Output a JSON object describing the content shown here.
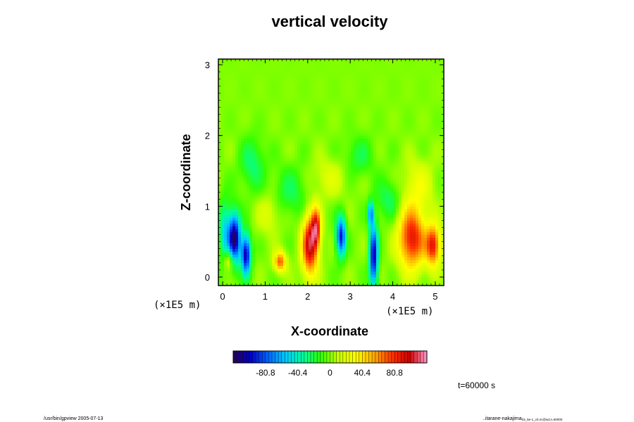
{
  "chart_data": {
    "type": "heatmap",
    "title": "vertical velocity",
    "xlabel": "X-coordinate",
    "ylabel": "Z-coordinate",
    "x_unit_label": "(×1E5 m)",
    "y_unit_label": "(×1E5 m)",
    "xlim": [
      -0.1,
      5.2
    ],
    "ylim": [
      -0.12,
      3.08
    ],
    "x_ticks": [
      "0",
      "1",
      "2",
      "3",
      "4",
      "5"
    ],
    "y_ticks": [
      "0",
      "1",
      "2",
      "3"
    ],
    "x_tick_values": [
      0,
      1,
      2,
      3,
      4,
      5
    ],
    "y_tick_values": [
      0,
      1,
      2,
      3
    ],
    "grid": false,
    "background_value": 0,
    "features": [
      {
        "sign": "negative",
        "x": 0.28,
        "z": 0.55,
        "sx": 0.1,
        "sz": 0.25,
        "amp": -115
      },
      {
        "sign": "negative",
        "x": 0.55,
        "z": 0.32,
        "sx": 0.08,
        "sz": 0.2,
        "amp": -105
      },
      {
        "sign": "negative",
        "x": 0.05,
        "z": 0.65,
        "sx": 0.1,
        "sz": 0.3,
        "amp": -45
      },
      {
        "sign": "positive",
        "x": 0.15,
        "z": 0.25,
        "sx": 0.08,
        "sz": 0.1,
        "amp": 40
      },
      {
        "sign": "positive",
        "x": 1.35,
        "z": 0.22,
        "sx": 0.1,
        "sz": 0.1,
        "amp": 70
      },
      {
        "sign": "positive",
        "x": 2.05,
        "z": 0.45,
        "sx": 0.13,
        "sz": 0.3,
        "amp": 100
      },
      {
        "sign": "positive",
        "x": 2.2,
        "z": 0.7,
        "sx": 0.08,
        "sz": 0.2,
        "amp": 75
      },
      {
        "sign": "negative",
        "x": 2.78,
        "z": 0.58,
        "sx": 0.08,
        "sz": 0.2,
        "amp": -95
      },
      {
        "sign": "negative",
        "x": 3.55,
        "z": 0.3,
        "sx": 0.07,
        "sz": 0.32,
        "amp": -105
      },
      {
        "sign": "negative",
        "x": 3.48,
        "z": 0.9,
        "sx": 0.05,
        "sz": 0.12,
        "amp": -60
      },
      {
        "sign": "positive",
        "x": 4.45,
        "z": 0.55,
        "sx": 0.22,
        "sz": 0.3,
        "amp": 90
      },
      {
        "sign": "positive",
        "x": 4.95,
        "z": 0.45,
        "sx": 0.12,
        "sz": 0.2,
        "amp": 85
      },
      {
        "sign": "positive",
        "x": 4.6,
        "z": 1.3,
        "sx": 0.25,
        "sz": 0.25,
        "amp": 25
      },
      {
        "sign": "negative",
        "x": 0.7,
        "z": 1.6,
        "sx": 0.2,
        "sz": 0.25,
        "amp": -28
      },
      {
        "sign": "negative",
        "x": 1.6,
        "z": 1.2,
        "sx": 0.3,
        "sz": 0.25,
        "amp": -22
      },
      {
        "sign": "positive",
        "x": 2.5,
        "z": 1.4,
        "sx": 0.3,
        "sz": 0.2,
        "amp": 18
      },
      {
        "sign": "negative",
        "x": 3.2,
        "z": 1.7,
        "sx": 0.25,
        "sz": 0.2,
        "amp": -20
      },
      {
        "sign": "positive",
        "x": 1.1,
        "z": 0.9,
        "sx": 0.2,
        "sz": 0.2,
        "amp": 20
      },
      {
        "sign": "negative",
        "x": 3.9,
        "z": 1.1,
        "sx": 0.2,
        "sz": 0.2,
        "amp": -25
      }
    ],
    "colorbar": {
      "range": [
        -121.2,
        121.2
      ],
      "tick_labels": [
        "-80.8",
        "-40.4",
        "0",
        "40.4",
        "80.8"
      ],
      "tick_values": [
        -80.8,
        -40.4,
        0,
        40.4,
        80.8
      ],
      "colors": [
        "#2a0055",
        "#0000cc",
        "#0066ff",
        "#00ccff",
        "#00ff99",
        "#33ff00",
        "#ccff00",
        "#ffff00",
        "#ffaa00",
        "#ff3300",
        "#cc0000",
        "#ff99cc"
      ]
    },
    "time_label": "t=60000 s"
  },
  "footer": {
    "left": "/usr/bin/gpview 2005-07-13",
    "right": "..itarane-nakajima",
    "right_sub": "03_5e-1_v3.nc@w2,t=60000"
  }
}
